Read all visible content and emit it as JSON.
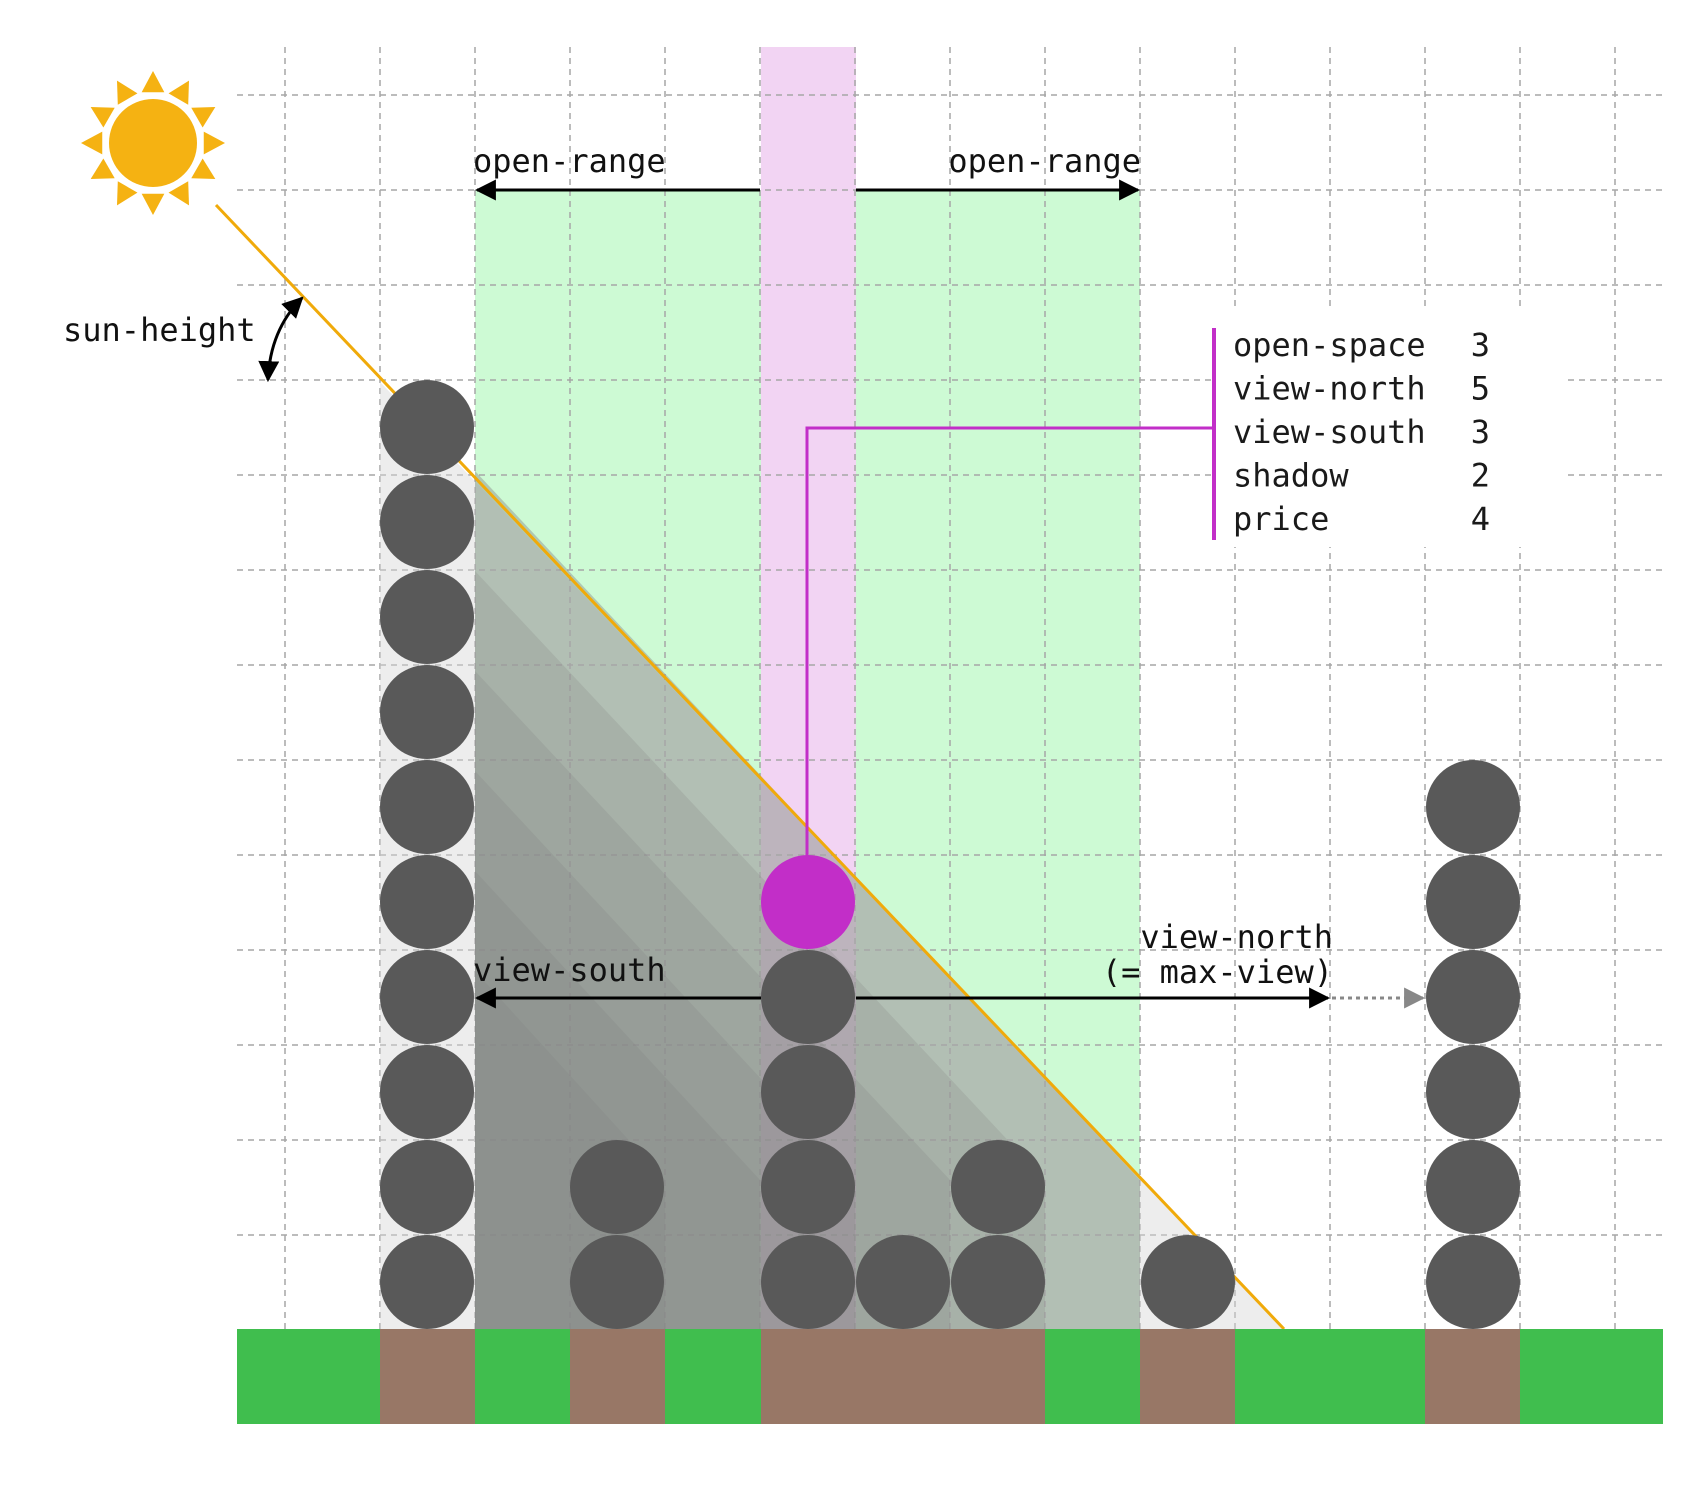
{
  "diagram": {
    "labels": {
      "open_range_left": "open-range",
      "open_range_right": "open-range",
      "sun_height": "sun-height",
      "view_south": "view-south",
      "view_north_line1": "view-north",
      "view_north_line2": "(= max-view)"
    },
    "stats": [
      {
        "name": "open-space",
        "value": "3"
      },
      {
        "name": "view-north",
        "value": "5"
      },
      {
        "name": "view-south",
        "value": "3"
      },
      {
        "name": "shadow",
        "value": "2"
      },
      {
        "name": "price",
        "value": "4"
      }
    ],
    "grid": {
      "columns": 15,
      "rows": 10
    },
    "ground": [
      "green",
      "green",
      "green",
      "brown",
      "brown",
      "green",
      "brown",
      "green",
      "brown",
      "brown",
      "brown",
      "green",
      "brown",
      "green",
      "green",
      "brown",
      "green",
      "green"
    ],
    "towers": [
      {
        "column": 2,
        "height": 10
      },
      {
        "column": 4,
        "height": 2
      },
      {
        "column": 6,
        "height": 4,
        "highlight_level": 4
      },
      {
        "column": 7,
        "height": 1
      },
      {
        "column": 8,
        "height": 2
      },
      {
        "column": 10,
        "height": 1
      },
      {
        "column": 13,
        "height": 6
      }
    ],
    "colors": {
      "building": "#595959",
      "highlight": "#c22ec8",
      "sun": "#f5b212",
      "sun_ray": "#f0aa0a",
      "open_range_band": "#cdfad4",
      "column_band": "#f2d4f3",
      "grass": "#40be4e",
      "soil": "#987766",
      "grid_line": "#a6a6a6"
    }
  }
}
